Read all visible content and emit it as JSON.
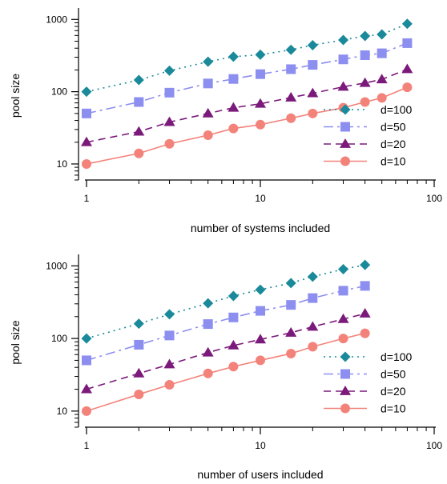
{
  "chart_data": [
    {
      "type": "line",
      "xscale": "log",
      "yscale": "log",
      "xlim": [
        1,
        100
      ],
      "ylim": [
        6,
        1300
      ],
      "xlabel": "number of systems included",
      "ylabel": "pool size",
      "xticks": [
        1,
        10,
        100
      ],
      "xtick_labels": [
        "1",
        "10",
        "100"
      ],
      "yticks": [
        10,
        100,
        1000
      ],
      "ytick_labels": [
        "10",
        "100",
        "1000"
      ],
      "legend_position": "bottom-right",
      "x": [
        1,
        2,
        3,
        5,
        7,
        10,
        15,
        20,
        30,
        40,
        50,
        70
      ],
      "series": [
        {
          "name": "d=100",
          "color": "#1a8a9a",
          "marker": "diamond",
          "dash": "dotted",
          "values": [
            100,
            145,
            195,
            260,
            305,
            325,
            380,
            440,
            520,
            590,
            620,
            870
          ]
        },
        {
          "name": "d=50",
          "color": "#8c8ef0",
          "marker": "square",
          "dash": "dashdot",
          "values": [
            50,
            72,
            97,
            130,
            150,
            175,
            205,
            235,
            280,
            320,
            340,
            470
          ]
        },
        {
          "name": "d=20",
          "color": "#7b1a7b",
          "marker": "triangle",
          "dash": "dashed",
          "values": [
            20,
            28,
            38,
            50,
            60,
            68,
            83,
            95,
            117,
            132,
            148,
            205
          ]
        },
        {
          "name": "d=10",
          "color": "#f3837a",
          "marker": "circle",
          "dash": "solid",
          "values": [
            10,
            14,
            19,
            25,
            31,
            35,
            43,
            50,
            60,
            72,
            82,
            115
          ]
        }
      ]
    },
    {
      "type": "line",
      "xscale": "log",
      "yscale": "log",
      "xlim": [
        1,
        100
      ],
      "ylim": [
        6,
        1300
      ],
      "xlabel": "number of users included",
      "ylabel": "pool size",
      "xticks": [
        1,
        10,
        100
      ],
      "xtick_labels": [
        "1",
        "10",
        "100"
      ],
      "yticks": [
        10,
        100,
        1000
      ],
      "ytick_labels": [
        "10",
        "100",
        "1000"
      ],
      "legend_position": "bottom-right",
      "x": [
        1,
        2,
        3,
        5,
        7,
        10,
        15,
        20,
        30,
        40
      ],
      "series": [
        {
          "name": "d=100",
          "color": "#1a8a9a",
          "marker": "diamond",
          "dash": "dotted",
          "values": [
            100,
            160,
            215,
            305,
            385,
            470,
            580,
            710,
            900,
            1030
          ]
        },
        {
          "name": "d=50",
          "color": "#8c8ef0",
          "marker": "square",
          "dash": "dashdot",
          "values": [
            50,
            82,
            110,
            158,
            195,
            240,
            290,
            360,
            455,
            530
          ]
        },
        {
          "name": "d=20",
          "color": "#7b1a7b",
          "marker": "triangle",
          "dash": "dashed",
          "values": [
            20,
            33,
            44,
            64,
            80,
            97,
            120,
            145,
            185,
            220
          ]
        },
        {
          "name": "d=10",
          "color": "#f3837a",
          "marker": "circle",
          "dash": "solid",
          "values": [
            10,
            17,
            23,
            33,
            41,
            50,
            62,
            77,
            100,
            118
          ]
        }
      ]
    }
  ]
}
